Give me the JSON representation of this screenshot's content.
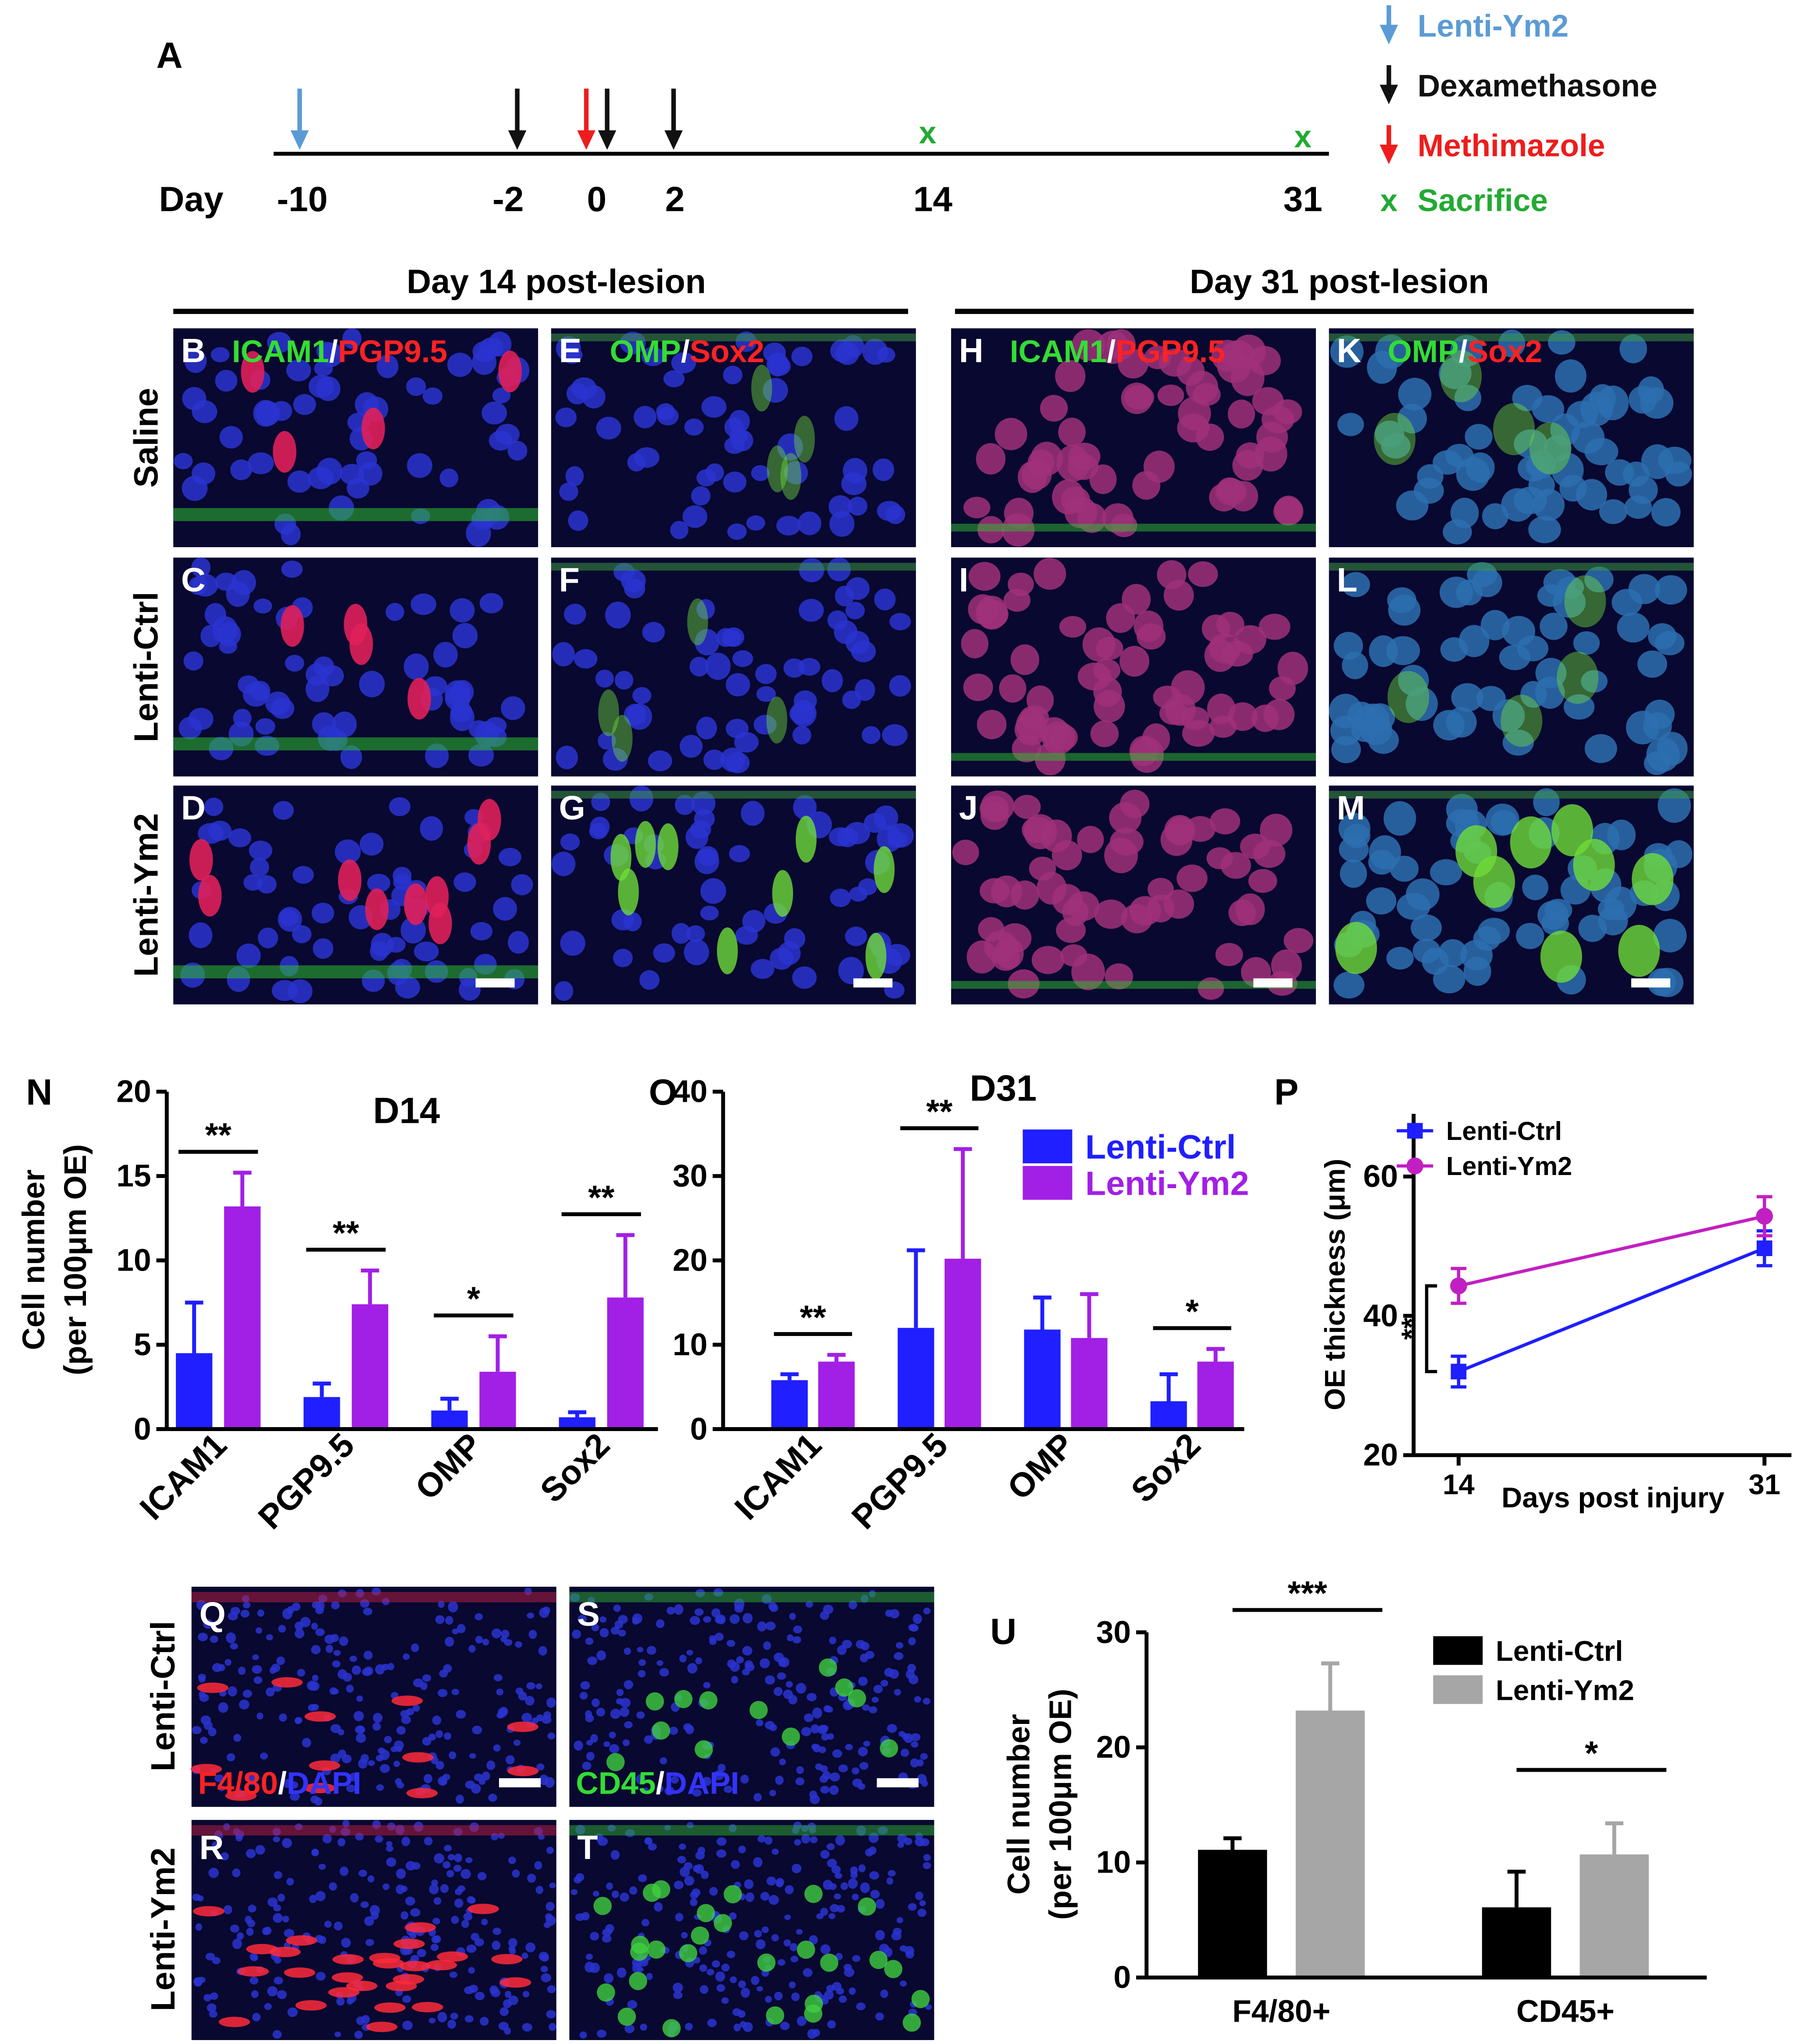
{
  "timeline": {
    "label": "A",
    "axis_label": "Day",
    "days": [
      "-10",
      "-2",
      "0",
      "2",
      "14",
      "31"
    ],
    "sacrifice_symbol": "x",
    "legend": [
      {
        "text": "Lenti-Ym2",
        "color": "#5b9bd5"
      },
      {
        "text": "Dexamethasone",
        "color": "#111111"
      },
      {
        "text": "Methimazole",
        "color": "#ee1c1c"
      },
      {
        "text": "Sacrifice",
        "color": "#22aa33"
      }
    ]
  },
  "micrographs": {
    "headers": [
      "Day 14 post-lesion",
      "Day 31 post-lesion"
    ],
    "rows": [
      "Saline",
      "Lenti-Ctrl",
      "Lenti-Ym2"
    ],
    "panels": [
      {
        "label": "B",
        "stain": [
          {
            "text": "ICAM1",
            "color": "#33dd33"
          },
          {
            "text": "/",
            "color": "#ffffff"
          },
          {
            "text": "PGP9.5",
            "color": "#ff2222"
          }
        ]
      },
      {
        "label": "C"
      },
      {
        "label": "D"
      },
      {
        "label": "E",
        "stain": [
          {
            "text": "OMP",
            "color": "#33dd33"
          },
          {
            "text": "/",
            "color": "#ffffff"
          },
          {
            "text": "Sox2",
            "color": "#ff2222"
          }
        ]
      },
      {
        "label": "F"
      },
      {
        "label": "G"
      },
      {
        "label": "H",
        "stain": [
          {
            "text": "ICAM1",
            "color": "#33dd33"
          },
          {
            "text": "/",
            "color": "#ffffff"
          },
          {
            "text": "PGP9.5",
            "color": "#ff2222"
          }
        ]
      },
      {
        "label": "I"
      },
      {
        "label": "J"
      },
      {
        "label": "K",
        "stain": [
          {
            "text": "OMP",
            "color": "#33dd33"
          },
          {
            "text": "/",
            "color": "#ffffff"
          },
          {
            "text": "Sox2",
            "color": "#ff2222"
          }
        ]
      },
      {
        "label": "L"
      },
      {
        "label": "M"
      }
    ],
    "lower_rows": [
      "Lenti-Ctrl",
      "Lenti-Ym2"
    ],
    "lower_panels": [
      {
        "label": "Q",
        "stain": [
          {
            "text": "F4/80",
            "color": "#ff2222"
          },
          {
            "text": "/",
            "color": "#ffffff"
          },
          {
            "text": "DAPI",
            "color": "#3333ff"
          }
        ]
      },
      {
        "label": "R"
      },
      {
        "label": "S",
        "stain": [
          {
            "text": "CD45",
            "color": "#33dd33"
          },
          {
            "text": "/",
            "color": "#ffffff"
          },
          {
            "text": "DAPI",
            "color": "#3333ff"
          }
        ]
      },
      {
        "label": "T"
      }
    ]
  },
  "chart_data": [
    {
      "type": "bar",
      "label": "N",
      "title": "D14",
      "ylabel": [
        "Cell number",
        "(per 100μm OE)"
      ],
      "categories": [
        "ICAM1",
        "PGP9.5",
        "OMP",
        "Sox2"
      ],
      "series": [
        {
          "color": "#1f1fff",
          "values": [
            4.5,
            1.9,
            1.1,
            0.7
          ],
          "errors": [
            3.0,
            0.8,
            0.7,
            0.3
          ]
        },
        {
          "color": "#a21fe6",
          "values": [
            13.2,
            7.4,
            3.4,
            7.8
          ],
          "errors": [
            2.0,
            2.0,
            2.1,
            3.7
          ]
        }
      ],
      "significance": [
        "**",
        "**",
        "*",
        "**"
      ],
      "ylim": [
        0,
        20
      ],
      "yticks": [
        0,
        5,
        10,
        15,
        20
      ],
      "legend": false
    },
    {
      "type": "bar",
      "label": "O",
      "title": "D31",
      "categories": [
        "ICAM1",
        "PGP9.5",
        "OMP",
        "Sox2"
      ],
      "series": [
        {
          "name": "Lenti-Ctrl",
          "color": "#1f1fff",
          "values": [
            5.8,
            12.0,
            11.8,
            3.3
          ],
          "errors": [
            0.7,
            9.2,
            3.8,
            3.2
          ]
        },
        {
          "name": "Lenti-Ym2",
          "color": "#a21fe6",
          "values": [
            8.0,
            20.2,
            10.8,
            8.0
          ],
          "errors": [
            0.8,
            13.0,
            5.2,
            1.5
          ]
        }
      ],
      "significance": [
        "**",
        "**",
        null,
        "*"
      ],
      "ylim": [
        0,
        40
      ],
      "yticks": [
        0,
        10,
        20,
        30,
        40
      ],
      "legend": true
    },
    {
      "type": "line",
      "label": "P",
      "ylabel": "OE thickness (μm)",
      "xlabel": "Days post injury",
      "x": [
        14,
        31
      ],
      "series": [
        {
          "name": "Lenti-Ctrl",
          "color": "#1f1fff",
          "marker": "square",
          "values": [
            32.0,
            49.7
          ],
          "errors": [
            2.2,
            2.5
          ]
        },
        {
          "name": "Lenti-Ym2",
          "color": "#c21fc2",
          "marker": "circle",
          "values": [
            44.3,
            54.3
          ],
          "errors": [
            2.5,
            2.8
          ]
        }
      ],
      "significance": "**",
      "xlim": [
        11.5,
        32.5
      ],
      "xticks": [
        14,
        31
      ],
      "ylim": [
        20,
        69
      ],
      "yticks": [
        20,
        40,
        60
      ],
      "legend": true
    },
    {
      "type": "bar",
      "label": "U",
      "ylabel": [
        "Cell number",
        "(per 100μm OE)"
      ],
      "categories": [
        "F4/80+",
        "CD45+"
      ],
      "series": [
        {
          "name": "Lenti-Ctrl",
          "color": "#000000",
          "values": [
            11.1,
            6.1
          ],
          "errors": [
            1.0,
            3.1
          ]
        },
        {
          "name": "Lenti-Ym2",
          "color": "#a6a6a6",
          "values": [
            23.2,
            10.7
          ],
          "errors": [
            4.1,
            2.7
          ]
        }
      ],
      "significance": [
        "***",
        "*"
      ],
      "ylim": [
        0,
        30
      ],
      "yticks": [
        0,
        10,
        20,
        30
      ],
      "legend": true
    }
  ]
}
